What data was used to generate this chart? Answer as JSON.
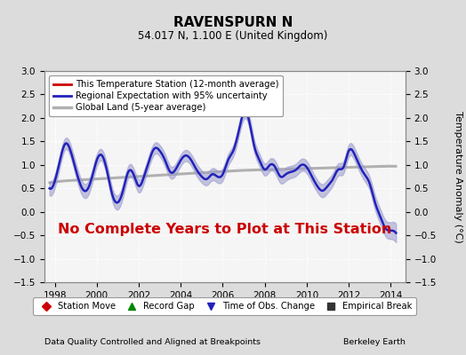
{
  "title": "RAVENSPURN N",
  "subtitle": "54.017 N, 1.100 E (United Kingdom)",
  "ylabel": "Temperature Anomaly (°C)",
  "xlabel_left": "Data Quality Controlled and Aligned at Breakpoints",
  "xlabel_right": "Berkeley Earth",
  "no_data_text": "No Complete Years to Plot at This Station",
  "ylim": [
    -1.5,
    3.0
  ],
  "xlim": [
    1997.5,
    2014.7
  ],
  "yticks": [
    -1.5,
    -1.0,
    -0.5,
    0.0,
    0.5,
    1.0,
    1.5,
    2.0,
    2.5,
    3.0
  ],
  "xticks": [
    1998,
    2000,
    2002,
    2004,
    2006,
    2008,
    2010,
    2012,
    2014
  ],
  "bg_color": "#dcdcdc",
  "plot_bg_color": "#f5f5f5",
  "grid_color": "#ffffff",
  "regional_line_color": "#2222bb",
  "regional_fill_color": "#9999cc",
  "station_line_color": "#cc0000",
  "global_line_color": "#b0b0b0",
  "no_data_color": "#cc0000",
  "legend1_items": [
    {
      "label": "This Temperature Station (12-month average)",
      "color": "#cc0000",
      "lw": 2.0
    },
    {
      "label": "Regional Expectation with 95% uncertainty",
      "color": "#2222bb",
      "lw": 2.0
    },
    {
      "label": "Global Land (5-year average)",
      "color": "#b0b0b0",
      "lw": 2.5
    }
  ],
  "legend2_items": [
    {
      "label": "Station Move",
      "marker": "D",
      "color": "#cc0000"
    },
    {
      "label": "Record Gap",
      "marker": "^",
      "color": "#008800"
    },
    {
      "label": "Time of Obs. Change",
      "marker": "v",
      "color": "#2222bb"
    },
    {
      "label": "Empirical Break",
      "marker": "s",
      "color": "#333333"
    }
  ],
  "regional_x": [
    1997.75,
    1998.0,
    1998.25,
    1998.5,
    1998.75,
    1999.0,
    1999.25,
    1999.5,
    1999.75,
    2000.0,
    2000.25,
    2000.5,
    2000.75,
    2001.0,
    2001.25,
    2001.5,
    2001.75,
    2002.0,
    2002.25,
    2002.5,
    2002.75,
    2003.0,
    2003.25,
    2003.5,
    2003.75,
    2004.0,
    2004.25,
    2004.5,
    2004.75,
    2005.0,
    2005.25,
    2005.5,
    2005.75,
    2006.0,
    2006.25,
    2006.5,
    2006.75,
    2007.0,
    2007.25,
    2007.5,
    2007.75,
    2008.0,
    2008.25,
    2008.5,
    2008.75,
    2009.0,
    2009.25,
    2009.5,
    2009.75,
    2010.0,
    2010.25,
    2010.5,
    2010.75,
    2011.0,
    2011.25,
    2011.5,
    2011.75,
    2012.0,
    2012.25,
    2012.5,
    2012.75,
    2013.0,
    2013.25,
    2013.5,
    2013.75,
    2014.0,
    2014.25
  ],
  "regional_y": [
    0.5,
    0.65,
    1.1,
    1.45,
    1.3,
    0.9,
    0.55,
    0.45,
    0.7,
    1.1,
    1.2,
    0.85,
    0.35,
    0.2,
    0.45,
    0.85,
    0.8,
    0.55,
    0.75,
    1.1,
    1.35,
    1.3,
    1.1,
    0.85,
    0.9,
    1.1,
    1.2,
    1.1,
    0.9,
    0.75,
    0.7,
    0.8,
    0.75,
    0.8,
    1.1,
    1.3,
    1.7,
    2.1,
    1.95,
    1.4,
    1.1,
    0.9,
    1.0,
    0.95,
    0.75,
    0.8,
    0.85,
    0.9,
    1.0,
    0.95,
    0.75,
    0.55,
    0.45,
    0.55,
    0.7,
    0.9,
    0.95,
    1.3,
    1.25,
    1.0,
    0.8,
    0.6,
    0.2,
    -0.1,
    -0.35,
    -0.4,
    -0.45
  ],
  "regional_unc": [
    0.15,
    0.14,
    0.13,
    0.12,
    0.13,
    0.14,
    0.15,
    0.15,
    0.14,
    0.13,
    0.12,
    0.13,
    0.14,
    0.15,
    0.14,
    0.13,
    0.13,
    0.14,
    0.13,
    0.12,
    0.12,
    0.12,
    0.13,
    0.13,
    0.12,
    0.12,
    0.12,
    0.12,
    0.13,
    0.13,
    0.13,
    0.13,
    0.13,
    0.13,
    0.12,
    0.12,
    0.12,
    0.13,
    0.13,
    0.13,
    0.13,
    0.13,
    0.13,
    0.13,
    0.14,
    0.14,
    0.13,
    0.13,
    0.13,
    0.13,
    0.13,
    0.13,
    0.14,
    0.14,
    0.13,
    0.13,
    0.13,
    0.13,
    0.13,
    0.13,
    0.14,
    0.14,
    0.15,
    0.16,
    0.17,
    0.18,
    0.2
  ],
  "global_x": [
    1997.75,
    1998.5,
    1999.25,
    2000.0,
    2000.75,
    2001.5,
    2002.25,
    2003.0,
    2003.75,
    2004.5,
    2005.25,
    2006.0,
    2006.75,
    2007.5,
    2008.25,
    2009.0,
    2009.75,
    2010.5,
    2011.25,
    2012.0,
    2012.75,
    2013.5,
    2014.25
  ],
  "global_y": [
    0.62,
    0.66,
    0.68,
    0.7,
    0.72,
    0.74,
    0.76,
    0.78,
    0.8,
    0.82,
    0.84,
    0.86,
    0.88,
    0.89,
    0.9,
    0.91,
    0.92,
    0.93,
    0.94,
    0.95,
    0.96,
    0.97,
    0.97
  ]
}
